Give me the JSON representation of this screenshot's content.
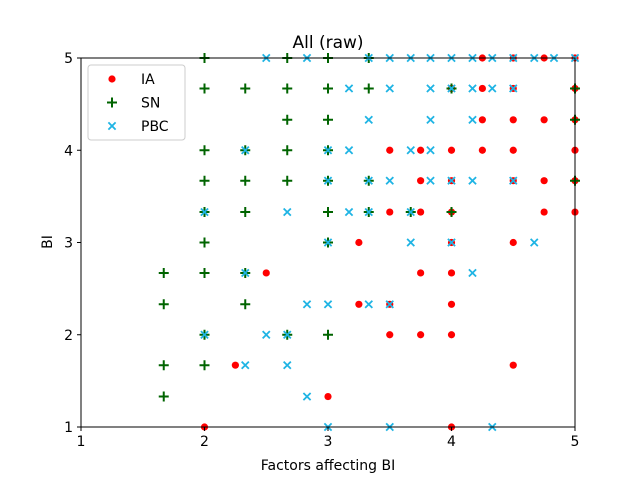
{
  "chart_data": {
    "type": "scatter",
    "title": "All (raw)",
    "xlabel": "Factors affecting BI",
    "ylabel": "BI",
    "xlim": [
      1,
      5
    ],
    "ylim": [
      1,
      5
    ],
    "xticks": [
      "1",
      "2",
      "3",
      "4",
      "5"
    ],
    "yticks": [
      "1",
      "2",
      "3",
      "4",
      "5"
    ],
    "grid": false,
    "legend_position": "top-left",
    "series": [
      {
        "name": "IA",
        "marker": "dot",
        "color": "#ff0000",
        "points": [
          [
            2,
            1
          ],
          [
            2.25,
            1.67
          ],
          [
            2.5,
            2.67
          ],
          [
            3,
            1.33
          ],
          [
            3.25,
            2.33
          ],
          [
            3.25,
            3
          ],
          [
            3.5,
            2
          ],
          [
            3.5,
            2.33
          ],
          [
            3.5,
            3.33
          ],
          [
            3.5,
            4
          ],
          [
            3.75,
            2
          ],
          [
            3.75,
            2.67
          ],
          [
            3.75,
            3.33
          ],
          [
            3.75,
            3.67
          ],
          [
            3.75,
            4
          ],
          [
            4,
            1
          ],
          [
            4,
            2
          ],
          [
            4,
            2.33
          ],
          [
            4,
            2.67
          ],
          [
            4,
            3
          ],
          [
            4,
            3.33
          ],
          [
            4,
            3.67
          ],
          [
            4,
            4
          ],
          [
            4,
            4.67
          ],
          [
            4.25,
            4
          ],
          [
            4.25,
            4.33
          ],
          [
            4.25,
            4.67
          ],
          [
            4.25,
            5
          ],
          [
            4.5,
            1.67
          ],
          [
            4.5,
            3
          ],
          [
            4.5,
            3.67
          ],
          [
            4.5,
            4
          ],
          [
            4.5,
            4.33
          ],
          [
            4.5,
            4.67
          ],
          [
            4.5,
            5
          ],
          [
            4.75,
            3.33
          ],
          [
            4.75,
            3.67
          ],
          [
            4.75,
            4.33
          ],
          [
            4.75,
            5
          ],
          [
            5,
            3.33
          ],
          [
            5,
            3.67
          ],
          [
            5,
            4
          ],
          [
            5,
            4.33
          ],
          [
            5,
            4.67
          ],
          [
            5,
            5
          ]
        ]
      },
      {
        "name": "SN",
        "marker": "plus",
        "color": "#006400",
        "points": [
          [
            1.67,
            1.33
          ],
          [
            1.67,
            1.67
          ],
          [
            1.67,
            2.33
          ],
          [
            1.67,
            2.67
          ],
          [
            2,
            1.67
          ],
          [
            2,
            2
          ],
          [
            2,
            2.67
          ],
          [
            2,
            3
          ],
          [
            2,
            3.33
          ],
          [
            2,
            3.67
          ],
          [
            2,
            4
          ],
          [
            2,
            4.67
          ],
          [
            2,
            5
          ],
          [
            2.33,
            2.33
          ],
          [
            2.33,
            2.67
          ],
          [
            2.33,
            3.33
          ],
          [
            2.33,
            3.67
          ],
          [
            2.33,
            4
          ],
          [
            2.33,
            4.67
          ],
          [
            2.67,
            2
          ],
          [
            2.67,
            3.67
          ],
          [
            2.67,
            4
          ],
          [
            2.67,
            4.33
          ],
          [
            2.67,
            4.67
          ],
          [
            2.67,
            5
          ],
          [
            3,
            2
          ],
          [
            3,
            3
          ],
          [
            3,
            3.33
          ],
          [
            3,
            3.67
          ],
          [
            3,
            4
          ],
          [
            3,
            4.33
          ],
          [
            3,
            4.67
          ],
          [
            3,
            5
          ],
          [
            3.33,
            3.33
          ],
          [
            3.33,
            3.67
          ],
          [
            3.33,
            4.67
          ],
          [
            3.33,
            5
          ],
          [
            3.67,
            3.33
          ],
          [
            4,
            3.33
          ],
          [
            4,
            4.67
          ],
          [
            5,
            3.67
          ],
          [
            5,
            4.33
          ],
          [
            5,
            4.67
          ]
        ]
      },
      {
        "name": "PBC",
        "marker": "x",
        "color": "#1fb4e4",
        "points": [
          [
            2,
            2
          ],
          [
            2,
            3.33
          ],
          [
            2.33,
            1.67
          ],
          [
            2.33,
            2.67
          ],
          [
            2.33,
            4
          ],
          [
            2.5,
            2
          ],
          [
            2.5,
            5
          ],
          [
            2.67,
            1.67
          ],
          [
            2.67,
            2
          ],
          [
            2.67,
            3.33
          ],
          [
            2.83,
            1.33
          ],
          [
            2.83,
            2.33
          ],
          [
            2.83,
            5
          ],
          [
            3,
            1
          ],
          [
            3,
            2.33
          ],
          [
            3,
            3
          ],
          [
            3,
            3.67
          ],
          [
            3,
            4
          ],
          [
            3.17,
            3.33
          ],
          [
            3.17,
            4
          ],
          [
            3.17,
            4.67
          ],
          [
            3.33,
            2.33
          ],
          [
            3.33,
            3.33
          ],
          [
            3.33,
            3.67
          ],
          [
            3.33,
            4.33
          ],
          [
            3.33,
            5
          ],
          [
            3.5,
            1
          ],
          [
            3.5,
            2.33
          ],
          [
            3.5,
            3.67
          ],
          [
            3.5,
            4.67
          ],
          [
            3.5,
            5
          ],
          [
            3.67,
            3
          ],
          [
            3.67,
            3.33
          ],
          [
            3.67,
            4
          ],
          [
            3.67,
            5
          ],
          [
            3.83,
            3.67
          ],
          [
            3.83,
            4
          ],
          [
            3.83,
            4.33
          ],
          [
            3.83,
            4.67
          ],
          [
            3.83,
            5
          ],
          [
            4,
            3
          ],
          [
            4,
            3.67
          ],
          [
            4,
            4.67
          ],
          [
            4,
            5
          ],
          [
            4.17,
            2.67
          ],
          [
            4.17,
            3.67
          ],
          [
            4.17,
            4.33
          ],
          [
            4.17,
            4.67
          ],
          [
            4.17,
            5
          ],
          [
            4.33,
            1
          ],
          [
            4.33,
            4.67
          ],
          [
            4.33,
            5
          ],
          [
            4.5,
            3.67
          ],
          [
            4.5,
            4.67
          ],
          [
            4.5,
            5
          ],
          [
            4.67,
            3
          ],
          [
            4.67,
            5
          ],
          [
            4.83,
            5
          ],
          [
            5,
            5
          ]
        ]
      }
    ]
  }
}
